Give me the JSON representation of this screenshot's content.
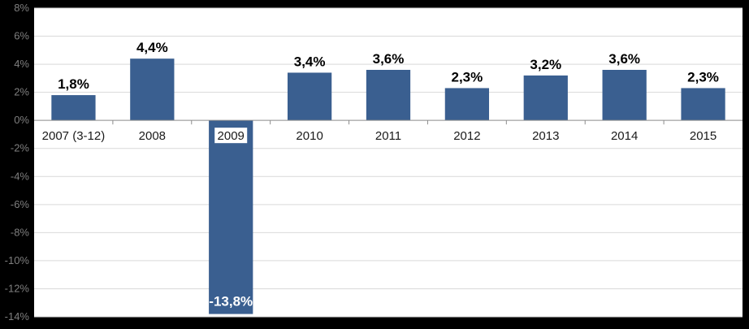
{
  "chart_data": {
    "type": "bar",
    "categories": [
      "2007 (3-12)",
      "2008",
      "2009",
      "2010",
      "2011",
      "2012",
      "2013",
      "2014",
      "2015"
    ],
    "values": [
      1.8,
      4.4,
      -13.8,
      3.4,
      3.6,
      2.3,
      3.2,
      3.6,
      2.3
    ],
    "data_labels": [
      "1,8%",
      "4,4%",
      "-13,8%",
      "3,4%",
      "3,6%",
      "2,3%",
      "3,2%",
      "3,6%",
      "2,3%"
    ],
    "y_ticks": [
      8,
      6,
      4,
      2,
      0,
      -2,
      -4,
      -6,
      -8,
      -10,
      -12,
      -14
    ],
    "y_tick_labels": [
      "8%",
      "6%",
      "4%",
      "2%",
      "0%",
      "-2%",
      "-4%",
      "-6%",
      "-8%",
      "-10%",
      "-12%",
      "-14%"
    ],
    "ylim": [
      -14,
      8
    ],
    "grid": true,
    "bar_color": "#3a5f90",
    "background_color": "#000000",
    "plot_background": "#ffffff",
    "title": "",
    "xlabel": "",
    "ylabel": ""
  }
}
